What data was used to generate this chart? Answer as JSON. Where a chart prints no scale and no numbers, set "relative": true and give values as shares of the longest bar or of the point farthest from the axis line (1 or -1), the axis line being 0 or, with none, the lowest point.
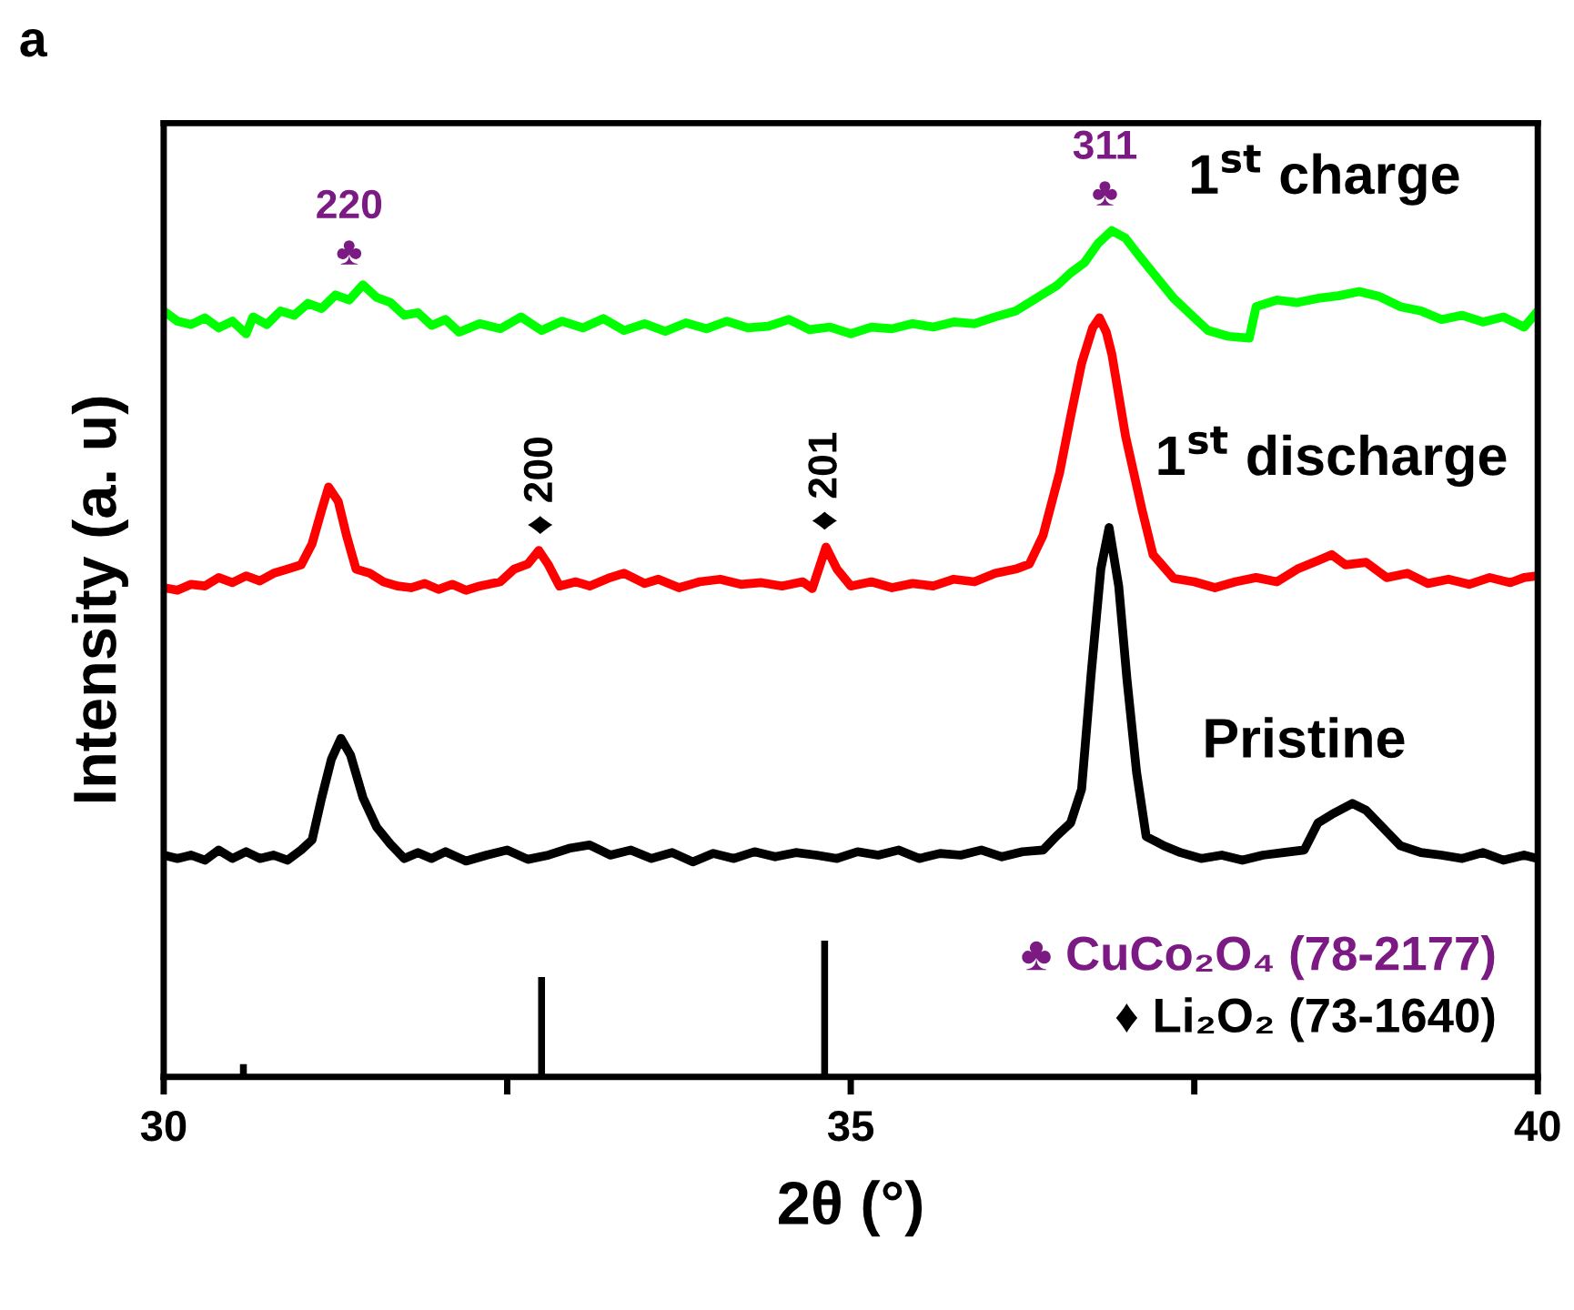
{
  "chart_data": {
    "type": "line",
    "relative": true,
    "xlabel": "2θ (°)",
    "ylabel": "Intensity (a. u)",
    "xlim": [
      30,
      40
    ],
    "xticks": [
      30,
      {
        "value": 32.5,
        "label": null
      },
      35,
      {
        "value": 37.5,
        "label": null
      },
      40
    ],
    "tick_labels": "x",
    "grid": false,
    "legend": false,
    "series": [
      {
        "name": "1$^{st}$ charge",
        "color": "#00ff00",
        "x": [
          30.0,
          30.1,
          30.2,
          30.3,
          30.4,
          30.5,
          30.6,
          30.65,
          30.75,
          30.85,
          30.95,
          31.05,
          31.15,
          31.25,
          31.35,
          31.45,
          31.55,
          31.65,
          31.75,
          31.85,
          31.95,
          32.05,
          32.15,
          32.3,
          32.45,
          32.6,
          32.75,
          32.9,
          33.05,
          33.2,
          33.35,
          33.5,
          33.65,
          33.8,
          33.95,
          34.1,
          34.25,
          34.4,
          34.55,
          34.7,
          34.85,
          35.0,
          35.15,
          35.3,
          35.45,
          35.6,
          35.75,
          35.9,
          36.05,
          36.2,
          36.35,
          36.5,
          36.6,
          36.7,
          36.8,
          36.9,
          37.0,
          37.1,
          37.2,
          37.35,
          37.5,
          37.6,
          37.75,
          37.9,
          37.95,
          38.1,
          38.25,
          38.4,
          38.55,
          38.7,
          38.85,
          39.0,
          39.15,
          39.3,
          39.45,
          39.6,
          39.75,
          39.9,
          40.0
        ],
        "values": [
          0.905,
          0.893,
          0.889,
          0.897,
          0.885,
          0.893,
          0.878,
          0.898,
          0.889,
          0.905,
          0.9,
          0.914,
          0.908,
          0.924,
          0.918,
          0.936,
          0.921,
          0.915,
          0.9,
          0.903,
          0.888,
          0.895,
          0.88,
          0.89,
          0.884,
          0.898,
          0.882,
          0.893,
          0.885,
          0.896,
          0.882,
          0.89,
          0.881,
          0.891,
          0.884,
          0.893,
          0.885,
          0.887,
          0.895,
          0.883,
          0.886,
          0.878,
          0.886,
          0.884,
          0.89,
          0.886,
          0.892,
          0.89,
          0.898,
          0.905,
          0.92,
          0.935,
          0.95,
          0.962,
          0.985,
          1.0,
          0.991,
          0.97,
          0.95,
          0.92,
          0.897,
          0.882,
          0.875,
          0.873,
          0.91,
          0.918,
          0.915,
          0.92,
          0.923,
          0.928,
          0.922,
          0.91,
          0.905,
          0.895,
          0.9,
          0.892,
          0.898,
          0.886,
          0.905
        ]
      },
      {
        "name": "1$^{st}$ discharge",
        "color": "#ff0000",
        "x": [
          30.0,
          30.1,
          30.2,
          30.3,
          30.4,
          30.5,
          30.6,
          30.7,
          30.8,
          30.9,
          31.0,
          31.08,
          31.15,
          31.2,
          31.27,
          31.33,
          31.4,
          31.5,
          31.6,
          31.7,
          31.8,
          31.9,
          32.0,
          32.1,
          32.2,
          32.3,
          32.45,
          32.55,
          32.65,
          32.73,
          32.8,
          32.88,
          33.0,
          33.1,
          33.25,
          33.35,
          33.5,
          33.6,
          33.75,
          33.9,
          34.05,
          34.2,
          34.35,
          34.5,
          34.65,
          34.72,
          34.82,
          34.9,
          35.0,
          35.15,
          35.3,
          35.45,
          35.6,
          35.75,
          35.9,
          36.05,
          36.2,
          36.3,
          36.4,
          36.52,
          36.6,
          36.68,
          36.76,
          36.81,
          36.86,
          36.9,
          37.0,
          37.12,
          37.2,
          37.35,
          37.5,
          37.65,
          37.8,
          37.95,
          38.1,
          38.25,
          38.4,
          38.5,
          38.6,
          38.75,
          38.9,
          39.05,
          39.2,
          39.35,
          39.5,
          39.65,
          39.8,
          39.9,
          40.0
        ],
        "values": [
          0.578,
          0.575,
          0.582,
          0.58,
          0.59,
          0.584,
          0.592,
          0.586,
          0.595,
          0.6,
          0.605,
          0.63,
          0.67,
          0.697,
          0.68,
          0.64,
          0.6,
          0.595,
          0.585,
          0.58,
          0.578,
          0.583,
          0.576,
          0.582,
          0.575,
          0.58,
          0.585,
          0.6,
          0.606,
          0.622,
          0.605,
          0.58,
          0.585,
          0.58,
          0.59,
          0.595,
          0.583,
          0.588,
          0.578,
          0.585,
          0.588,
          0.582,
          0.584,
          0.58,
          0.585,
          0.577,
          0.626,
          0.6,
          0.58,
          0.585,
          0.578,
          0.583,
          0.58,
          0.588,
          0.585,
          0.595,
          0.6,
          0.606,
          0.64,
          0.714,
          0.78,
          0.843,
          0.885,
          0.897,
          0.88,
          0.854,
          0.757,
          0.67,
          0.617,
          0.589,
          0.585,
          0.578,
          0.585,
          0.59,
          0.585,
          0.6,
          0.61,
          0.617,
          0.605,
          0.608,
          0.59,
          0.595,
          0.583,
          0.588,
          0.582,
          0.59,
          0.584,
          0.59,
          0.592
        ]
      },
      {
        "name": "Pristine",
        "color": "#000000",
        "x": [
          30.0,
          30.1,
          30.2,
          30.3,
          30.4,
          30.5,
          30.6,
          30.7,
          30.8,
          30.9,
          31.0,
          31.08,
          31.15,
          31.22,
          31.29,
          31.36,
          31.45,
          31.55,
          31.65,
          31.75,
          31.85,
          31.95,
          32.05,
          32.2,
          32.35,
          32.5,
          32.65,
          32.8,
          32.95,
          33.1,
          33.25,
          33.4,
          33.55,
          33.7,
          33.85,
          34.0,
          34.15,
          34.3,
          34.45,
          34.6,
          34.75,
          34.9,
          35.05,
          35.2,
          35.35,
          35.5,
          35.65,
          35.8,
          35.95,
          36.1,
          36.25,
          36.4,
          36.5,
          36.6,
          36.68,
          36.75,
          36.82,
          36.88,
          36.95,
          37.01,
          37.08,
          37.15,
          37.28,
          37.4,
          37.55,
          37.7,
          37.85,
          38.0,
          38.15,
          38.3,
          38.4,
          38.5,
          38.65,
          38.75,
          38.87,
          39.0,
          39.15,
          39.3,
          39.45,
          39.6,
          39.75,
          39.9,
          40.0
        ],
        "values": [
          0.262,
          0.258,
          0.262,
          0.256,
          0.268,
          0.258,
          0.266,
          0.258,
          0.262,
          0.256,
          0.268,
          0.28,
          0.33,
          0.375,
          0.4,
          0.38,
          0.33,
          0.295,
          0.275,
          0.258,
          0.265,
          0.258,
          0.266,
          0.255,
          0.262,
          0.268,
          0.257,
          0.262,
          0.27,
          0.274,
          0.262,
          0.268,
          0.258,
          0.265,
          0.254,
          0.264,
          0.258,
          0.266,
          0.26,
          0.265,
          0.262,
          0.258,
          0.266,
          0.262,
          0.268,
          0.258,
          0.264,
          0.262,
          0.268,
          0.26,
          0.266,
          0.268,
          0.285,
          0.3,
          0.34,
          0.477,
          0.6,
          0.649,
          0.58,
          0.47,
          0.36,
          0.284,
          0.273,
          0.265,
          0.258,
          0.262,
          0.256,
          0.262,
          0.265,
          0.268,
          0.3,
          0.31,
          0.323,
          0.315,
          0.295,
          0.273,
          0.265,
          0.262,
          0.258,
          0.265,
          0.256,
          0.262,
          0.258
        ]
      },
      {
        "type": "bar",
        "color": "#000000",
        "x": [
          30.58,
          32.75,
          34.81
        ],
        "values": [
          0.015,
          0.118,
          0.161
        ]
      }
    ],
    "annotations": [
      "a",
      "220\n♣",
      "311\n♣",
      "♦ 200",
      "♦ 201",
      "♣ CuCo₂O₄ (78-2177)",
      "♦ Li₂O₂ (73-1640)"
    ]
  }
}
